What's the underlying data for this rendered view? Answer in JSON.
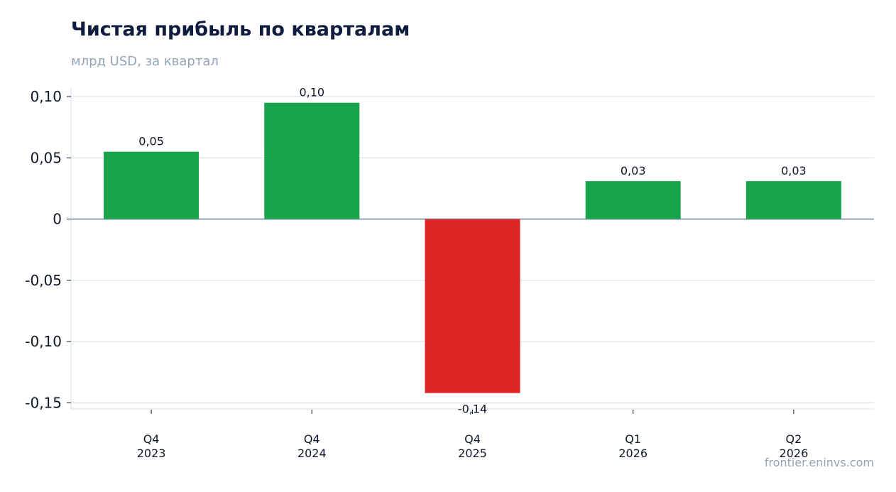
{
  "chart_data": {
    "type": "bar",
    "title": "Чистая прибыль по кварталам",
    "subtitle": "млрд USD, за квартал",
    "categories": [
      [
        "Q4",
        "2023"
      ],
      [
        "Q4",
        "2024"
      ],
      [
        "Q4",
        "2025"
      ],
      [
        "Q1",
        "2026"
      ],
      [
        "Q2",
        "2026"
      ]
    ],
    "values": [
      0.055,
      0.095,
      -0.142,
      0.031,
      0.031
    ],
    "data_labels": [
      "0,05",
      "0,10",
      "-0,14",
      "0,03",
      "0,03"
    ],
    "ylim": [
      -0.155,
      0.107
    ],
    "yticks": [
      0.1,
      0.05,
      0,
      -0.05,
      -0.1,
      -0.15
    ],
    "ytick_labels": [
      "0,10",
      "0,05",
      "0",
      "-0,05",
      "-0,10",
      "-0,15"
    ],
    "grid": true,
    "legend": "none",
    "colors": {
      "positive": "#18a34a",
      "negative": "#dc2626",
      "grid": "#e2e8f0",
      "zero_line": "#94a3b8"
    }
  },
  "footer": {
    "watermark": "frontier.eninvs.com"
  }
}
